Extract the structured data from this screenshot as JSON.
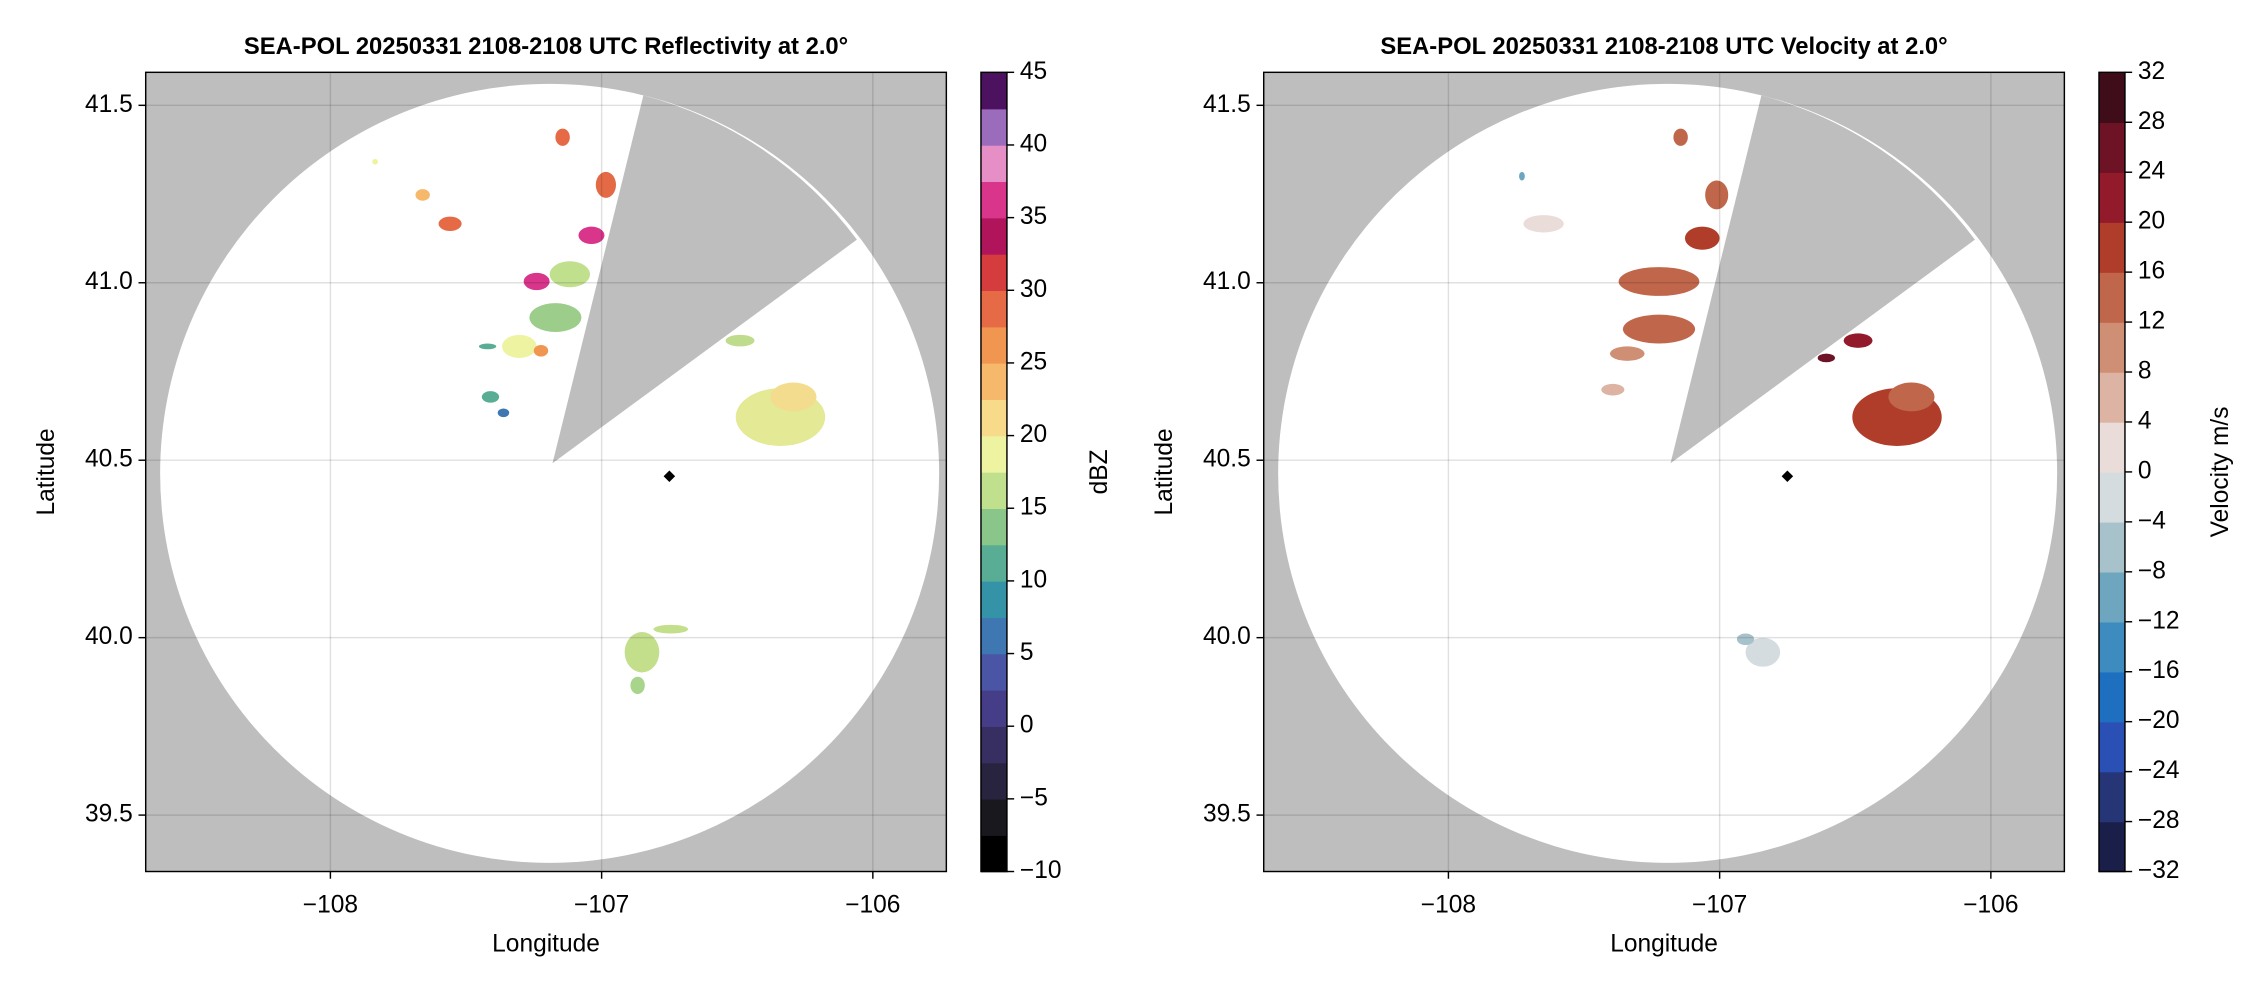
{
  "chart_data": [
    {
      "type": "ppi",
      "title": "SEA-POL 20250331 2108-2108 UTC Reflectivity at 2.0°",
      "xlabel": "Longitude",
      "ylabel": "Latitude",
      "xlim": [
        -108.681,
        -105.729
      ],
      "ylim": [
        39.341,
        41.593
      ],
      "xticks": [
        {
          "value": -108,
          "label": "−108"
        },
        {
          "value": -107,
          "label": "−107"
        },
        {
          "value": -106,
          "label": "−106"
        }
      ],
      "yticks": [
        41.5,
        {
          "value": 41,
          "label": "41.0"
        },
        40.5,
        {
          "value": 40,
          "label": "40.0"
        },
        39.5
      ],
      "grid": true,
      "colorbar": {
        "label": "dBZ",
        "lim": [
          -10,
          45
        ],
        "ticks": [
          {
            "value": -10,
            "label": "−10"
          },
          {
            "value": -5,
            "label": "−5"
          },
          0,
          5,
          10,
          15,
          20,
          25,
          30,
          35,
          40,
          45
        ],
        "colors": [
          "#000000",
          "#19181f",
          "#282440",
          "#372f62",
          "#463d88",
          "#4a55a6",
          "#3f77b2",
          "#3593a8",
          "#58ad94",
          "#8ac68a",
          "#c1e08e",
          "#eef3a2",
          "#f8da8b",
          "#f6b96b",
          "#f09651",
          "#e56a45",
          "#d43c3e",
          "#b0145a",
          "#d8358b",
          "#e68fc6",
          "#9a6cbb",
          "#4d125f"
        ]
      }
    },
    {
      "type": "ppi",
      "title": "SEA-POL 20250331 2108-2108 UTC Velocity at 2.0°",
      "xlabel": "Longitude",
      "ylabel": "Latitude",
      "xlim": [
        -108.681,
        -105.729
      ],
      "ylim": [
        39.341,
        41.593
      ],
      "xticks": [
        {
          "value": -108,
          "label": "−108"
        },
        {
          "value": -107,
          "label": "−107"
        },
        {
          "value": -106,
          "label": "−106"
        }
      ],
      "yticks": [
        41.5,
        {
          "value": 41,
          "label": "41.0"
        },
        40.5,
        {
          "value": 40,
          "label": "40.0"
        },
        39.5
      ],
      "grid": true,
      "colorbar": {
        "label": "Velocity m/s",
        "lim": [
          -32,
          32
        ],
        "ticks": [
          {
            "value": -32,
            "label": "−32"
          },
          {
            "value": -28,
            "label": "−28"
          },
          {
            "value": -24,
            "label": "−24"
          },
          {
            "value": -20,
            "label": "−20"
          },
          {
            "value": -16,
            "label": "−16"
          },
          {
            "value": -12,
            "label": "−12"
          },
          {
            "value": -8,
            "label": "−8"
          },
          {
            "value": -4,
            "label": "−4"
          },
          0,
          4,
          8,
          12,
          16,
          20,
          24,
          28,
          32
        ],
        "colors": [
          "#1a1f4a",
          "#253575",
          "#2a4fb5",
          "#1f6fc0",
          "#3d8bbf",
          "#6ea6c0",
          "#a8c2cb",
          "#d5dcdf",
          "#e9dcd9",
          "#ddb3a3",
          "#cf8f75",
          "#c0664a",
          "#b03d2a",
          "#931a2a",
          "#6e1326",
          "#3f0d19"
        ]
      }
    }
  ]
}
